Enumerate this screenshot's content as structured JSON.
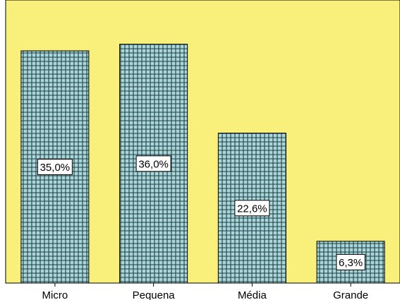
{
  "chart_data": {
    "type": "bar",
    "categories": [
      "Micro",
      "Pequena",
      "Média",
      "Grande"
    ],
    "values": [
      35.0,
      36.0,
      22.6,
      6.3
    ],
    "data_labels": [
      "35,0%",
      "36,0%",
      "22,6%",
      "6,3%"
    ],
    "ylim": [
      0,
      40
    ],
    "title": "",
    "xlabel": "",
    "ylabel": "",
    "grid": false,
    "legend": "none",
    "colors": {
      "plot_background": "#f8f07a",
      "bar_fill": "#a9d6d9",
      "bar_pattern": "#1f3e44",
      "bar_outline": "#000000",
      "label_box": "#ffffff"
    }
  }
}
